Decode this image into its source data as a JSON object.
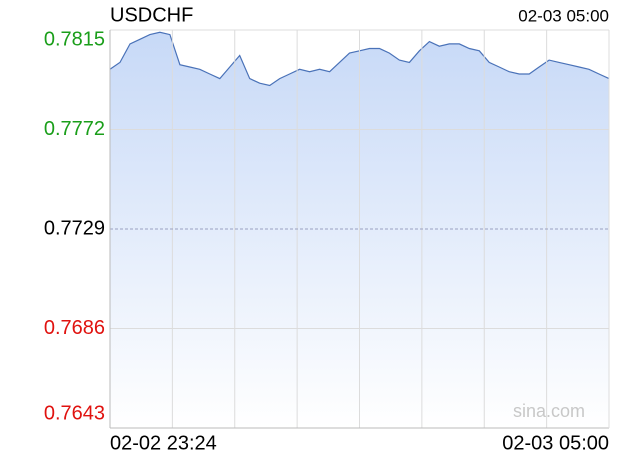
{
  "chart_data": {
    "type": "line",
    "title": "USDCHF",
    "time": "02-03 05:00",
    "watermark": "sina.com",
    "categories": [
      "02-02 23:24",
      null,
      null,
      null,
      null,
      null,
      null,
      null,
      null,
      null,
      null,
      null,
      null,
      null,
      null,
      null,
      null,
      null,
      null,
      null,
      null,
      null,
      null,
      null,
      null,
      null,
      null,
      null,
      null,
      null,
      null,
      null,
      null,
      null,
      null,
      null,
      null,
      null,
      null,
      null,
      null,
      null,
      null,
      null,
      null,
      null,
      null,
      null,
      null,
      null,
      "02-03 05:00"
    ],
    "values": [
      0.7798,
      0.7801,
      0.7809,
      0.7811,
      0.7813,
      0.7814,
      0.7813,
      0.78,
      0.7799,
      0.7798,
      0.7796,
      0.7794,
      0.7799,
      0.7804,
      0.7794,
      0.7792,
      0.7791,
      0.7794,
      0.7796,
      0.7798,
      0.7797,
      0.7798,
      0.7797,
      0.7801,
      0.7805,
      0.7806,
      0.7807,
      0.7807,
      0.7805,
      0.7802,
      0.7801,
      0.7806,
      0.781,
      0.7808,
      0.7809,
      0.7809,
      0.7807,
      0.7806,
      0.7801,
      0.7799,
      0.7797,
      0.7796,
      0.7796,
      0.7799,
      0.7802,
      0.7801,
      0.78,
      0.7799,
      0.7798,
      0.7796,
      0.7794
    ],
    "color": "#4a72b8",
    "ylim": [
      0.7643,
      0.7815
    ],
    "yticks": [
      0.7815,
      0.7772,
      0.7729,
      0.7686,
      0.7643
    ],
    "ytick_colors": [
      "#1a9e1a",
      "#1a9e1a",
      "#000000",
      "#e0120f",
      "#e0120f"
    ],
    "grid": true
  }
}
